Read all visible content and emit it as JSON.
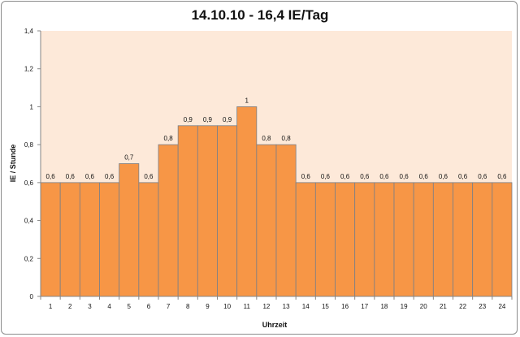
{
  "chart_data": {
    "type": "bar",
    "title": "14.10.10 - 16,4 IE/Tag",
    "xlabel": "Uhrzeit",
    "ylabel": "IE / Stunde",
    "categories": [
      "1",
      "2",
      "3",
      "4",
      "5",
      "6",
      "7",
      "8",
      "9",
      "10",
      "11",
      "12",
      "13",
      "14",
      "15",
      "16",
      "17",
      "18",
      "19",
      "20",
      "21",
      "22",
      "23",
      "24"
    ],
    "values": [
      0.6,
      0.6,
      0.6,
      0.6,
      0.7,
      0.6,
      0.8,
      0.9,
      0.9,
      0.9,
      1,
      0.8,
      0.8,
      0.6,
      0.6,
      0.6,
      0.6,
      0.6,
      0.6,
      0.6,
      0.6,
      0.6,
      0.6,
      0.6
    ],
    "data_labels": [
      "0,6",
      "0,6",
      "0,6",
      "0,6",
      "0,7",
      "0,6",
      "0,8",
      "0,9",
      "0,9",
      "0,9",
      "1",
      "0,8",
      "0,8",
      "0,6",
      "0,6",
      "0,6",
      "0,6",
      "0,6",
      "0,6",
      "0,6",
      "0,6",
      "0,6",
      "0,6",
      "0,6"
    ],
    "ylim": [
      0,
      1.4
    ],
    "yticks": [
      0,
      0.2,
      0.4,
      0.6,
      0.8,
      1,
      1.2,
      1.4
    ],
    "ytick_labels": [
      "0",
      "0,2",
      "0,4",
      "0,6",
      "0,8",
      "1",
      "1,2",
      "1,4"
    ],
    "grid": false,
    "legend": "none",
    "colors": {
      "bar": "#f79646",
      "bar_edge": "#7a7f87",
      "plot_bg": "#fde9d9",
      "axis": "#868686"
    }
  }
}
